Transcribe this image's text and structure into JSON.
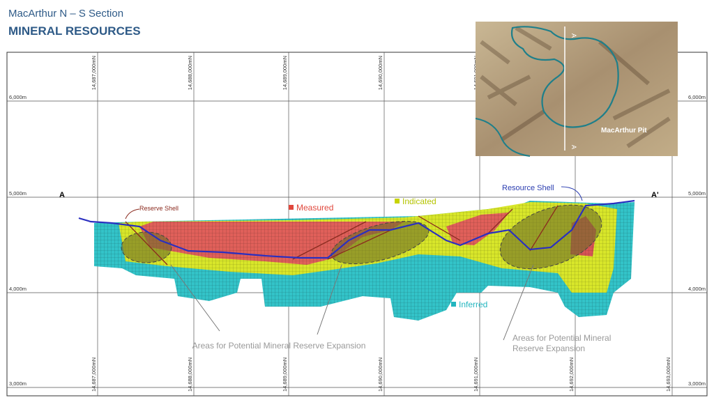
{
  "header": {
    "title": "MacArthur N – S Section",
    "subtitle": "MINERAL RESOURCES"
  },
  "northings": [
    "14,687,000mN",
    "14,688,000mN",
    "14,689,000mN",
    "14,690,000mN",
    "14,691,000mN",
    "14,692,000mN",
    "14,693,000mN"
  ],
  "elevations": [
    "6,000m",
    "5,000m",
    "4,000m",
    "3,000m"
  ],
  "section": {
    "start": "A",
    "end": "A'"
  },
  "legend": {
    "measured": "Measured",
    "indicated": "Indicated",
    "inferred": "Inferred",
    "reserve_shell": "Reserve Shell",
    "resource_shell": "Resource Shell"
  },
  "annotations": [
    {
      "text": "Areas for Potential Mineral Reserve Expansion"
    },
    {
      "lines": [
        "Areas for Potential Mineral",
        "Reserve Expansion"
      ]
    }
  ],
  "inset": {
    "pit_label": "MacArthur Pit",
    "section_top": "A",
    "section_bottom": "A"
  }
}
